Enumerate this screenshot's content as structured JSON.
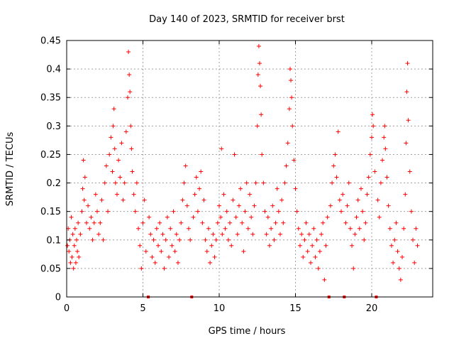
{
  "chart_data": {
    "type": "scatter",
    "title": "Day 140 of 2023, SRMTID for receiver brst",
    "xlabel": "GPS time / hours",
    "ylabel": "SRMTID / TECUs",
    "xlim": [
      0,
      24
    ],
    "ylim": [
      0,
      0.45
    ],
    "x_ticks": [
      {
        "value": 0,
        "label": "0"
      },
      {
        "value": 5,
        "label": "5"
      },
      {
        "value": 10,
        "label": "10"
      },
      {
        "value": 15,
        "label": "15"
      },
      {
        "value": 20,
        "label": "20"
      }
    ],
    "y_ticks": [
      {
        "value": 0,
        "label": "0"
      },
      {
        "value": 0.05,
        "label": "0.05"
      },
      {
        "value": 0.1,
        "label": "0.1"
      },
      {
        "value": 0.15,
        "label": "0.15"
      },
      {
        "value": 0.2,
        "label": "0.2"
      },
      {
        "value": 0.25,
        "label": "0.25"
      },
      {
        "value": 0.3,
        "label": "0.3"
      },
      {
        "value": 0.35,
        "label": "0.35"
      },
      {
        "value": 0.4,
        "label": "0.4"
      },
      {
        "value": 0.45,
        "label": "0.45"
      }
    ],
    "grid": true,
    "marker": "+",
    "color": "#ff0000",
    "gap_markers_x": [
      5.35,
      8.2,
      17.2,
      18.2,
      20.3
    ],
    "series": [
      {
        "name": "SRMTID",
        "points": [
          [
            0.05,
            0.09
          ],
          [
            0.1,
            0.12
          ],
          [
            0.15,
            0.08
          ],
          [
            0.2,
            0.1
          ],
          [
            0.25,
            0.06
          ],
          [
            0.3,
            0.14
          ],
          [
            0.35,
            0.07
          ],
          [
            0.4,
            0.11
          ],
          [
            0.45,
            0.05
          ],
          [
            0.5,
            0.09
          ],
          [
            0.55,
            0.12
          ],
          [
            0.6,
            0.06
          ],
          [
            0.65,
            0.1
          ],
          [
            0.7,
            0.08
          ],
          [
            0.75,
            0.13
          ],
          [
            0.8,
            0.07
          ],
          [
            0.9,
            0.11
          ],
          [
            1.0,
            0.15
          ],
          [
            1.05,
            0.19
          ],
          [
            1.1,
            0.24
          ],
          [
            1.15,
            0.17
          ],
          [
            1.2,
            0.21
          ],
          [
            1.3,
            0.13
          ],
          [
            1.4,
            0.16
          ],
          [
            1.5,
            0.12
          ],
          [
            1.6,
            0.14
          ],
          [
            1.7,
            0.1
          ],
          [
            1.8,
            0.13
          ],
          [
            1.9,
            0.18
          ],
          [
            2.0,
            0.15
          ],
          [
            2.1,
            0.11
          ],
          [
            2.2,
            0.13
          ],
          [
            2.3,
            0.17
          ],
          [
            2.4,
            0.1
          ],
          [
            2.5,
            0.2
          ],
          [
            2.6,
            0.23
          ],
          [
            2.7,
            0.15
          ],
          [
            2.8,
            0.25
          ],
          [
            2.9,
            0.28
          ],
          [
            3.0,
            0.22
          ],
          [
            3.05,
            0.3
          ],
          [
            3.1,
            0.33
          ],
          [
            3.15,
            0.26
          ],
          [
            3.2,
            0.2
          ],
          [
            3.3,
            0.18
          ],
          [
            3.4,
            0.24
          ],
          [
            3.5,
            0.21
          ],
          [
            3.6,
            0.27
          ],
          [
            3.7,
            0.17
          ],
          [
            3.8,
            0.2
          ],
          [
            3.9,
            0.29
          ],
          [
            4.0,
            0.35
          ],
          [
            4.05,
            0.43
          ],
          [
            4.1,
            0.39
          ],
          [
            4.15,
            0.36
          ],
          [
            4.2,
            0.3
          ],
          [
            4.25,
            0.26
          ],
          [
            4.3,
            0.22
          ],
          [
            4.4,
            0.18
          ],
          [
            4.5,
            0.15
          ],
          [
            4.6,
            0.2
          ],
          [
            4.7,
            0.12
          ],
          [
            4.8,
            0.09
          ],
          [
            4.9,
            0.05
          ],
          [
            5.0,
            0.13
          ],
          [
            5.1,
            0.17
          ],
          [
            5.2,
            0.08
          ],
          [
            5.4,
            0.14
          ],
          [
            5.5,
            0.11
          ],
          [
            5.6,
            0.07
          ],
          [
            5.7,
            0.1
          ],
          [
            5.8,
            0.06
          ],
          [
            5.9,
            0.12
          ],
          [
            6.0,
            0.09
          ],
          [
            6.1,
            0.13
          ],
          [
            6.2,
            0.08
          ],
          [
            6.3,
            0.11
          ],
          [
            6.4,
            0.05
          ],
          [
            6.5,
            0.1
          ],
          [
            6.6,
            0.14
          ],
          [
            6.7,
            0.07
          ],
          [
            6.8,
            0.12
          ],
          [
            6.9,
            0.09
          ],
          [
            7.0,
            0.15
          ],
          [
            7.1,
            0.08
          ],
          [
            7.2,
            0.11
          ],
          [
            7.3,
            0.06
          ],
          [
            7.4,
            0.1
          ],
          [
            7.5,
            0.13
          ],
          [
            7.6,
            0.17
          ],
          [
            7.7,
            0.2
          ],
          [
            7.8,
            0.23
          ],
          [
            7.9,
            0.16
          ],
          [
            8.0,
            0.12
          ],
          [
            8.1,
            0.1
          ],
          [
            8.3,
            0.14
          ],
          [
            8.4,
            0.18
          ],
          [
            8.5,
            0.21
          ],
          [
            8.6,
            0.15
          ],
          [
            8.7,
            0.19
          ],
          [
            8.8,
            0.22
          ],
          [
            8.9,
            0.13
          ],
          [
            9.0,
            0.17
          ],
          [
            9.1,
            0.1
          ],
          [
            9.2,
            0.08
          ],
          [
            9.3,
            0.12
          ],
          [
            9.4,
            0.06
          ],
          [
            9.5,
            0.09
          ],
          [
            9.6,
            0.11
          ],
          [
            9.7,
            0.07
          ],
          [
            9.8,
            0.1
          ],
          [
            9.9,
            0.13
          ],
          [
            10.0,
            0.16
          ],
          [
            10.1,
            0.14
          ],
          [
            10.15,
            0.26
          ],
          [
            10.2,
            0.11
          ],
          [
            10.3,
            0.18
          ],
          [
            10.4,
            0.12
          ],
          [
            10.5,
            0.15
          ],
          [
            10.6,
            0.1
          ],
          [
            10.7,
            0.13
          ],
          [
            10.8,
            0.09
          ],
          [
            10.9,
            0.17
          ],
          [
            11.0,
            0.25
          ],
          [
            11.1,
            0.14
          ],
          [
            11.2,
            0.11
          ],
          [
            11.3,
            0.16
          ],
          [
            11.4,
            0.19
          ],
          [
            11.5,
            0.13
          ],
          [
            11.6,
            0.08
          ],
          [
            11.7,
            0.15
          ],
          [
            11.8,
            0.2
          ],
          [
            11.9,
            0.12
          ],
          [
            12.0,
            0.18
          ],
          [
            12.1,
            0.14
          ],
          [
            12.2,
            0.11
          ],
          [
            12.3,
            0.16
          ],
          [
            12.4,
            0.2
          ],
          [
            12.5,
            0.3
          ],
          [
            12.55,
            0.39
          ],
          [
            12.6,
            0.44
          ],
          [
            12.65,
            0.41
          ],
          [
            12.7,
            0.37
          ],
          [
            12.75,
            0.32
          ],
          [
            12.8,
            0.25
          ],
          [
            12.9,
            0.2
          ],
          [
            13.0,
            0.15
          ],
          [
            13.1,
            0.11
          ],
          [
            13.2,
            0.14
          ],
          [
            13.3,
            0.09
          ],
          [
            13.4,
            0.12
          ],
          [
            13.5,
            0.16
          ],
          [
            13.6,
            0.1
          ],
          [
            13.7,
            0.13
          ],
          [
            13.8,
            0.19
          ],
          [
            13.9,
            0.15
          ],
          [
            14.0,
            0.11
          ],
          [
            14.1,
            0.17
          ],
          [
            14.2,
            0.13
          ],
          [
            14.3,
            0.2
          ],
          [
            14.4,
            0.23
          ],
          [
            14.5,
            0.27
          ],
          [
            14.6,
            0.33
          ],
          [
            14.65,
            0.4
          ],
          [
            14.7,
            0.38
          ],
          [
            14.75,
            0.35
          ],
          [
            14.8,
            0.3
          ],
          [
            14.9,
            0.24
          ],
          [
            15.0,
            0.19
          ],
          [
            15.1,
            0.15
          ],
          [
            15.2,
            0.12
          ],
          [
            15.3,
            0.09
          ],
          [
            15.4,
            0.11
          ],
          [
            15.5,
            0.07
          ],
          [
            15.6,
            0.1
          ],
          [
            15.7,
            0.13
          ],
          [
            15.8,
            0.08
          ],
          [
            15.9,
            0.11
          ],
          [
            16.0,
            0.06
          ],
          [
            16.1,
            0.09
          ],
          [
            16.2,
            0.12
          ],
          [
            16.3,
            0.07
          ],
          [
            16.4,
            0.1
          ],
          [
            16.5,
            0.05
          ],
          [
            16.6,
            0.08
          ],
          [
            16.7,
            0.11
          ],
          [
            16.8,
            0.13
          ],
          [
            16.9,
            0.03
          ],
          [
            17.0,
            0.09
          ],
          [
            17.1,
            0.14
          ],
          [
            17.3,
            0.16
          ],
          [
            17.4,
            0.2
          ],
          [
            17.5,
            0.23
          ],
          [
            17.6,
            0.25
          ],
          [
            17.7,
            0.21
          ],
          [
            17.8,
            0.29
          ],
          [
            17.9,
            0.17
          ],
          [
            18.0,
            0.15
          ],
          [
            18.1,
            0.18
          ],
          [
            18.3,
            0.13
          ],
          [
            18.4,
            0.16
          ],
          [
            18.5,
            0.2
          ],
          [
            18.6,
            0.12
          ],
          [
            18.7,
            0.09
          ],
          [
            18.8,
            0.05
          ],
          [
            18.9,
            0.11
          ],
          [
            19.0,
            0.14
          ],
          [
            19.1,
            0.17
          ],
          [
            19.2,
            0.12
          ],
          [
            19.3,
            0.19
          ],
          [
            19.4,
            0.15
          ],
          [
            19.5,
            0.1
          ],
          [
            19.6,
            0.13
          ],
          [
            19.7,
            0.18
          ],
          [
            19.8,
            0.21
          ],
          [
            19.9,
            0.25
          ],
          [
            20.0,
            0.28
          ],
          [
            20.05,
            0.32
          ],
          [
            20.1,
            0.3
          ],
          [
            20.2,
            0.22
          ],
          [
            20.4,
            0.17
          ],
          [
            20.5,
            0.14
          ],
          [
            20.6,
            0.2
          ],
          [
            20.7,
            0.24
          ],
          [
            20.8,
            0.28
          ],
          [
            20.85,
            0.3
          ],
          [
            20.9,
            0.26
          ],
          [
            21.0,
            0.21
          ],
          [
            21.1,
            0.16
          ],
          [
            21.2,
            0.12
          ],
          [
            21.3,
            0.09
          ],
          [
            21.4,
            0.06
          ],
          [
            21.5,
            0.1
          ],
          [
            21.6,
            0.13
          ],
          [
            21.7,
            0.08
          ],
          [
            21.8,
            0.05
          ],
          [
            21.9,
            0.03
          ],
          [
            22.0,
            0.07
          ],
          [
            22.1,
            0.12
          ],
          [
            22.2,
            0.18
          ],
          [
            22.25,
            0.27
          ],
          [
            22.3,
            0.36
          ],
          [
            22.35,
            0.41
          ],
          [
            22.4,
            0.31
          ],
          [
            22.5,
            0.22
          ],
          [
            22.6,
            0.15
          ],
          [
            22.7,
            0.1
          ],
          [
            22.8,
            0.06
          ],
          [
            22.9,
            0.12
          ],
          [
            23.0,
            0.09
          ]
        ]
      }
    ]
  }
}
